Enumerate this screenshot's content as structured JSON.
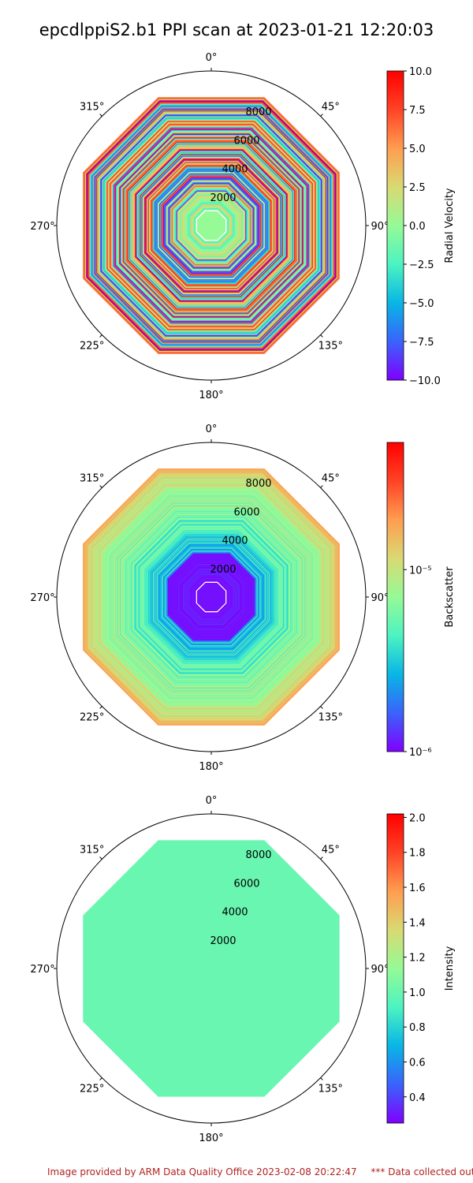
{
  "title": "epcdlppiS2.b1 PPI scan at 2023-01-21 12:20:03",
  "footer": {
    "provided_by": "Image provided by ARM Data Quality Office 2023-02-08 20:22:47",
    "warning": "*** Data collected outside"
  },
  "colors": {
    "rainbow": [
      "#8000ff",
      "#3a63fb",
      "#08b6e5",
      "#4df3c1",
      "#96fa96",
      "#d9d973",
      "#ff9d50",
      "#ff4326",
      "#ff0000"
    ],
    "frame": "#000000"
  },
  "chart_data": [
    {
      "type": "heatmap",
      "projection": "polar",
      "theta_zero_location": "N",
      "theta_direction": "clockwise",
      "angle_tick_labels": [
        "0°",
        "45°",
        "90°",
        "135°",
        "180°",
        "225°",
        "270°",
        "315°"
      ],
      "radial_tick_labels": [
        "2000",
        "4000",
        "6000",
        "8000"
      ],
      "radial_ticks": [
        2000,
        4000,
        6000,
        8000
      ],
      "rmax": 10000,
      "colorbar": {
        "label": "Radial Velocity",
        "scale": "linear",
        "range": [
          -10.0,
          10.0
        ],
        "ticks": [
          -10.0,
          -7.5,
          -5.0,
          -2.5,
          0.0,
          2.5,
          5.0,
          7.5,
          10.0
        ],
        "tick_labels": [
          "−10.0",
          "−7.5",
          "−5.0",
          "−2.5",
          "0.0",
          "2.5",
          "5.0",
          "7.5",
          "10.0"
        ]
      },
      "field_pattern": "noisy"
    },
    {
      "type": "heatmap",
      "projection": "polar",
      "theta_zero_location": "N",
      "theta_direction": "clockwise",
      "angle_tick_labels": [
        "0°",
        "45°",
        "90°",
        "135°",
        "180°",
        "225°",
        "270°",
        "315°"
      ],
      "radial_tick_labels": [
        "2000",
        "4000",
        "6000",
        "8000"
      ],
      "radial_ticks": [
        2000,
        4000,
        6000,
        8000
      ],
      "rmax": 10000,
      "colorbar": {
        "label": "Backscatter",
        "scale": "log",
        "range": [
          1e-06,
          5e-05
        ],
        "ticks": [
          1e-06,
          1e-05
        ],
        "tick_labels": [
          "10⁻⁶",
          "10⁻⁵"
        ]
      },
      "field_pattern": "increasing_with_range"
    },
    {
      "type": "heatmap",
      "projection": "polar",
      "theta_zero_location": "N",
      "theta_direction": "clockwise",
      "angle_tick_labels": [
        "0°",
        "45°",
        "90°",
        "135°",
        "180°",
        "225°",
        "270°",
        "315°"
      ],
      "radial_tick_labels": [
        "2000",
        "4000",
        "6000",
        "8000"
      ],
      "radial_ticks": [
        2000,
        4000,
        6000,
        8000
      ],
      "rmax": 10000,
      "colorbar": {
        "label": "Intensity",
        "scale": "linear",
        "range": [
          0.25,
          2.02
        ],
        "ticks": [
          0.4,
          0.6,
          0.8,
          1.0,
          1.2,
          1.4,
          1.6,
          1.8,
          2.0
        ],
        "tick_labels": [
          "0.4",
          "0.6",
          "0.8",
          "1.0",
          "1.2",
          "1.4",
          "1.6",
          "1.8",
          "2.0"
        ]
      },
      "field_value": 1.0,
      "field_pattern": "uniform"
    }
  ]
}
